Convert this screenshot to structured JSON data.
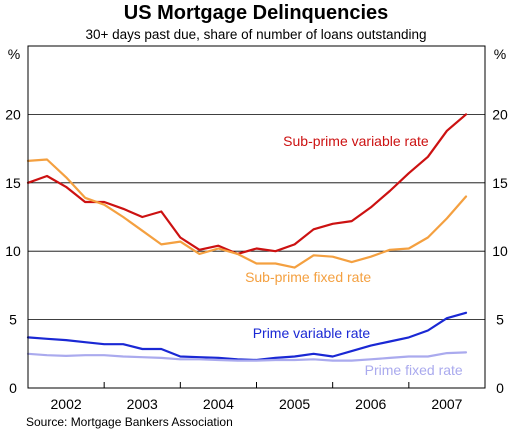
{
  "chart_data": {
    "type": "line",
    "title": "US Mortgage Delinquencies",
    "subtitle": "30+ days past due, share of number of loans outstanding",
    "y_unit_left": "%",
    "y_unit_right": "%",
    "ylim": [
      0,
      25
    ],
    "y_ticks": [
      0,
      5,
      10,
      15,
      20
    ],
    "y_tick_labels": [
      "0",
      "5",
      "10",
      "15",
      "20"
    ],
    "grid": true,
    "xlim": [
      2001.6,
      2007.6
    ],
    "x_year_bounds": [
      2001.6,
      2002.6,
      2003.6,
      2004.6,
      2005.6,
      2006.6,
      2007.6
    ],
    "x_tick_labels": [
      "2002",
      "2003",
      "2004",
      "2005",
      "2006",
      "2007"
    ],
    "x_tick_positions": [
      2002.1,
      2003.1,
      2004.1,
      2005.1,
      2006.1,
      2007.1
    ],
    "source": "Source: Mortgage Bankers Association",
    "series": [
      {
        "name": "Sub-prime variable rate",
        "color": "#cc1111",
        "label_x": 2004.95,
        "label_y": 17.7,
        "x": [
          2001.6,
          2001.85,
          2002.1,
          2002.35,
          2002.6,
          2002.85,
          2003.1,
          2003.35,
          2003.6,
          2003.85,
          2004.1,
          2004.35,
          2004.6,
          2004.85,
          2005.1,
          2005.35,
          2005.6,
          2005.85,
          2006.1,
          2006.35,
          2006.6,
          2006.85,
          2007.1,
          2007.35
        ],
        "values": [
          15.0,
          15.5,
          14.7,
          13.6,
          13.6,
          13.1,
          12.5,
          12.9,
          11.0,
          10.1,
          10.4,
          9.8,
          10.2,
          10.0,
          10.5,
          11.6,
          12.0,
          12.2,
          13.2,
          14.4,
          15.7,
          16.9,
          18.8,
          20.0
        ]
      },
      {
        "name": "Sub-prime fixed rate",
        "color": "#f4a040",
        "label_x": 2004.45,
        "label_y": 7.75,
        "x": [
          2001.6,
          2001.85,
          2002.1,
          2002.35,
          2002.6,
          2002.85,
          2003.1,
          2003.35,
          2003.6,
          2003.85,
          2004.1,
          2004.35,
          2004.6,
          2004.85,
          2005.1,
          2005.35,
          2005.6,
          2005.85,
          2006.1,
          2006.35,
          2006.6,
          2006.85,
          2007.1,
          2007.35
        ],
        "values": [
          16.6,
          16.7,
          15.4,
          13.9,
          13.4,
          12.5,
          11.5,
          10.5,
          10.7,
          9.8,
          10.2,
          9.8,
          9.1,
          9.1,
          8.8,
          9.7,
          9.6,
          9.2,
          9.6,
          10.1,
          10.2,
          11.0,
          12.4,
          14.0
        ]
      },
      {
        "name": "Prime variable rate",
        "color": "#1a28d4",
        "label_x": 2004.55,
        "label_y": 3.65,
        "x": [
          2001.6,
          2001.85,
          2002.1,
          2002.35,
          2002.6,
          2002.85,
          2003.1,
          2003.35,
          2003.6,
          2003.85,
          2004.1,
          2004.35,
          2004.6,
          2004.85,
          2005.1,
          2005.35,
          2005.6,
          2005.85,
          2006.1,
          2006.35,
          2006.6,
          2006.85,
          2007.1,
          2007.35
        ],
        "values": [
          3.7,
          3.6,
          3.5,
          3.35,
          3.2,
          3.2,
          2.85,
          2.85,
          2.3,
          2.25,
          2.2,
          2.1,
          2.05,
          2.2,
          2.3,
          2.5,
          2.3,
          2.7,
          3.1,
          3.4,
          3.7,
          4.2,
          5.1,
          5.5
        ]
      },
      {
        "name": "Prime fixed rate",
        "color": "#aaaaee",
        "label_x": 2006.02,
        "label_y": 0.95,
        "x": [
          2001.6,
          2001.85,
          2002.1,
          2002.35,
          2002.6,
          2002.85,
          2003.1,
          2003.35,
          2003.6,
          2003.85,
          2004.1,
          2004.35,
          2004.6,
          2004.85,
          2005.1,
          2005.35,
          2005.6,
          2005.85,
          2006.1,
          2006.35,
          2006.6,
          2006.85,
          2007.1,
          2007.35
        ],
        "values": [
          2.5,
          2.4,
          2.35,
          2.4,
          2.4,
          2.3,
          2.25,
          2.2,
          2.1,
          2.1,
          2.05,
          2.0,
          2.0,
          2.05,
          2.05,
          2.1,
          2.0,
          2.0,
          2.1,
          2.2,
          2.3,
          2.3,
          2.55,
          2.6
        ]
      }
    ]
  }
}
